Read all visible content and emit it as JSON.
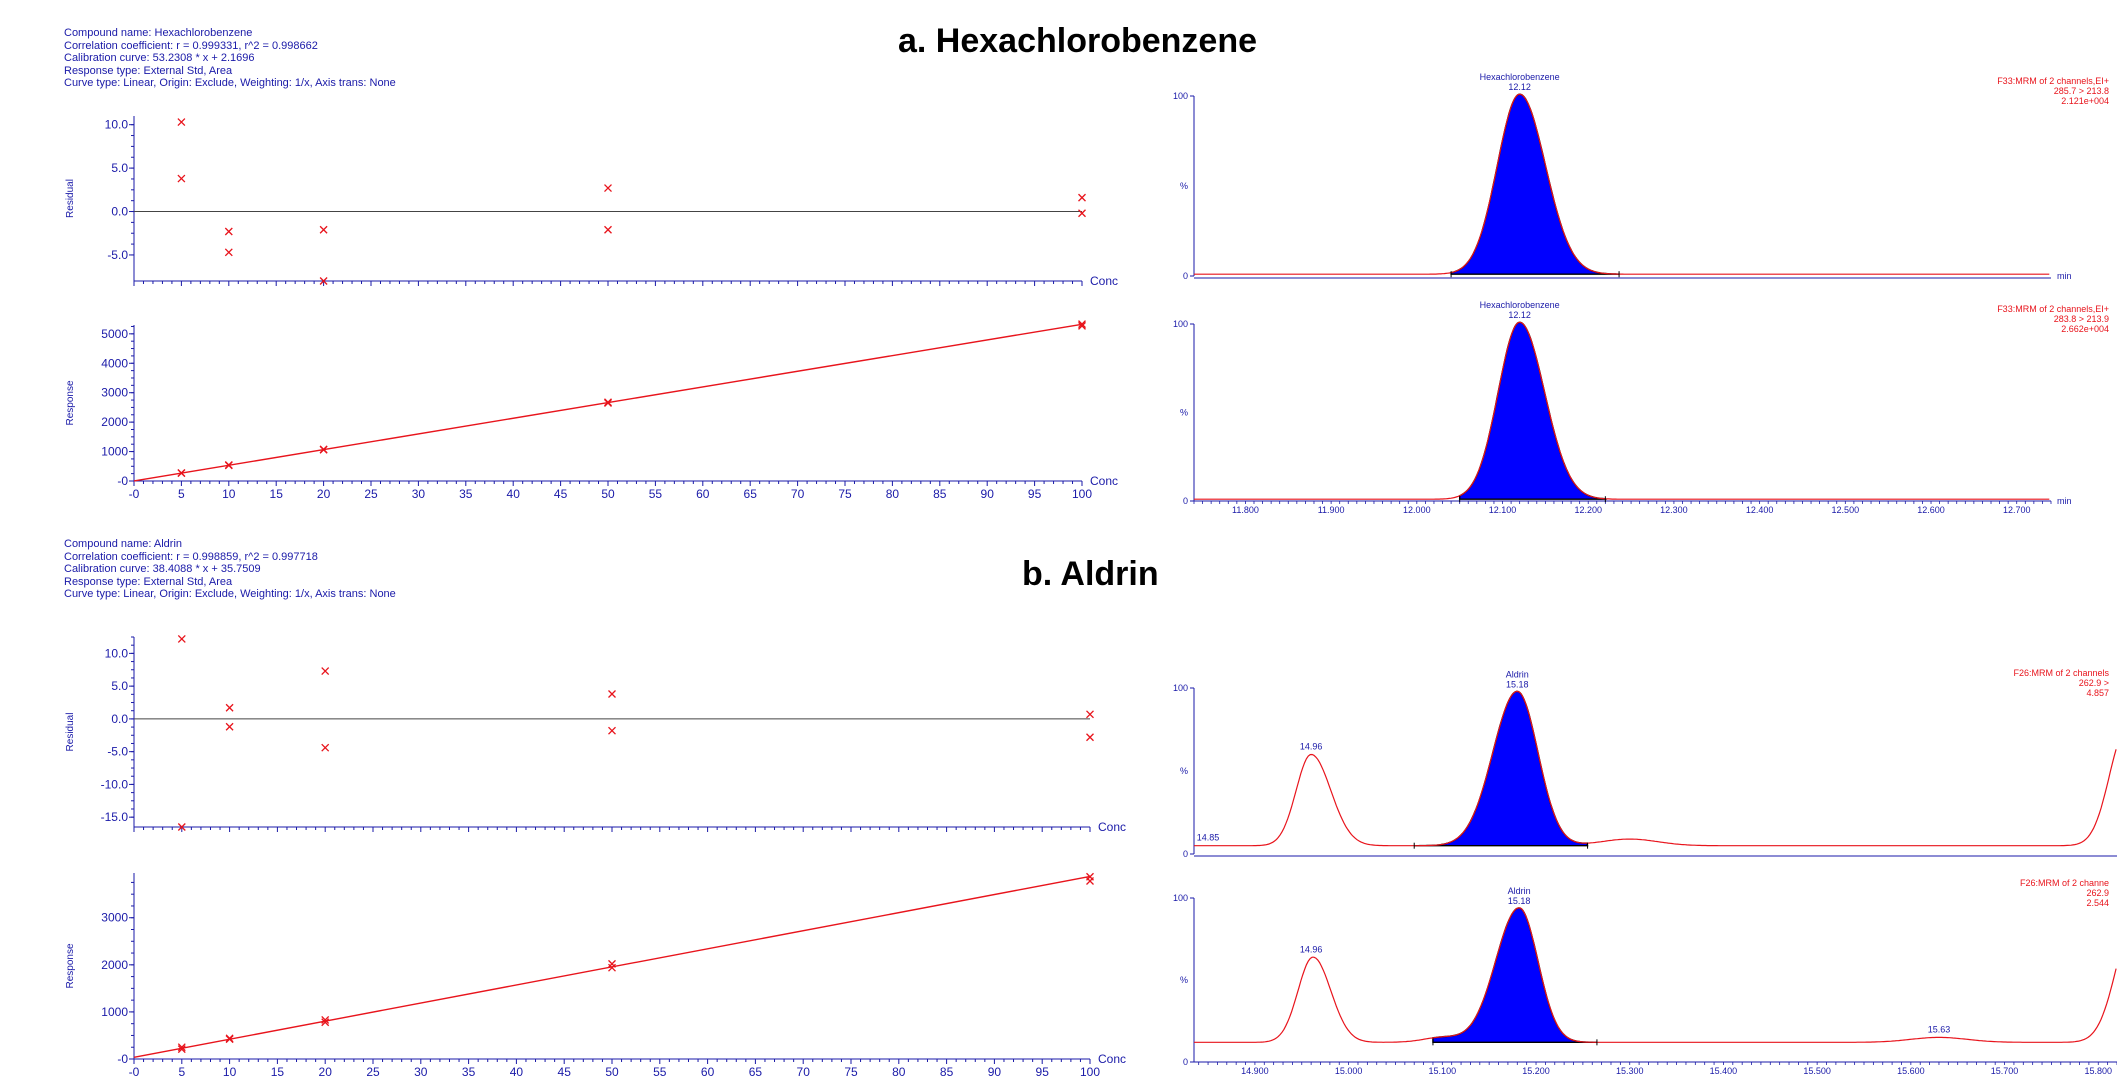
{
  "panels": [
    {
      "title": "a. Hexachlorobenzene",
      "info": [
        "Compound name: Hexachlorobenzene",
        "Correlation coefficient: r = 0.999331, r^2 = 0.998662",
        "Calibration curve: 53.2308 * x + 2.1696",
        "Response type: External Std, Area",
        "Curve type: Linear, Origin: Exclude, Weighting: 1/x, Axis trans: None"
      ]
    },
    {
      "title": "b. Aldrin",
      "info": [
        "Compound name: Aldrin",
        "Correlation coefficient: r = 0.998859, r^2 = 0.997718",
        "Calibration curve: 38.4088 * x + 35.7509",
        "Response type: External Std, Area",
        "Curve type: Linear, Origin: Exclude, Weighting: 1/x, Axis trans: None"
      ]
    }
  ],
  "colors": {
    "axis": "#1a1aa8",
    "data": "#e8141c",
    "peak_fill": "#0000ff",
    "text": "#1a1aa8"
  },
  "chart_data": [
    {
      "id": "a-residual",
      "type": "scatter",
      "title": "",
      "xlabel": "Conc",
      "ylabel": "Residual",
      "xlim": [
        0,
        100
      ],
      "ylim": [
        -8,
        11
      ],
      "zero_line": true,
      "xticks": [
        0,
        5,
        10,
        15,
        20,
        25,
        30,
        35,
        40,
        45,
        50,
        55,
        60,
        65,
        70,
        75,
        80,
        85,
        90,
        95,
        100
      ],
      "xtick_labels_shown": false,
      "yticks": [
        -5,
        0,
        5,
        10
      ],
      "ytick_labels": [
        "-5.0",
        "0.0",
        "5.0",
        "10.0"
      ],
      "points": [
        [
          5,
          10.3
        ],
        [
          5,
          3.8
        ],
        [
          10,
          -2.3
        ],
        [
          10,
          -4.7
        ],
        [
          20,
          -2.1
        ],
        [
          20,
          -8
        ],
        [
          50,
          2.7
        ],
        [
          50,
          -2.1
        ],
        [
          100,
          1.6
        ],
        [
          100,
          -0.2
        ]
      ]
    },
    {
      "id": "a-response",
      "type": "scatter",
      "title": "",
      "xlabel": "Conc",
      "ylabel": "Response",
      "xlim": [
        0,
        100
      ],
      "ylim": [
        0,
        5300
      ],
      "fit": {
        "slope": 53.2308,
        "intercept": 2.1696
      },
      "xticks": [
        0,
        5,
        10,
        15,
        20,
        25,
        30,
        35,
        40,
        45,
        50,
        55,
        60,
        65,
        70,
        75,
        80,
        85,
        90,
        95,
        100
      ],
      "xtick_labels": [
        "-0",
        "5",
        "10",
        "15",
        "20",
        "25",
        "30",
        "35",
        "40",
        "45",
        "50",
        "55",
        "60",
        "65",
        "70",
        "75",
        "80",
        "85",
        "90",
        "95",
        "100"
      ],
      "yticks": [
        0,
        1000,
        2000,
        3000,
        4000,
        5000
      ],
      "ytick_labels": [
        "-0",
        "1000",
        "2000",
        "3000",
        "4000",
        "5000"
      ],
      "points": [
        [
          5,
          268
        ],
        [
          5,
          274
        ],
        [
          10,
          530
        ],
        [
          10,
          545
        ],
        [
          20,
          1060
        ],
        [
          20,
          1075
        ],
        [
          50,
          2650
        ],
        [
          50,
          2675
        ],
        [
          100,
          5270
        ],
        [
          100,
          5330
        ]
      ]
    },
    {
      "id": "a-chrom-1",
      "type": "line",
      "title": "",
      "peak_label": "Hexachlorobenzene",
      "peak_rt": "12.12",
      "channel_info": [
        "F33:MRM of 2 channels,EI+",
        "285.7 > 213.8",
        "2.121e+004"
      ],
      "xlim": [
        11.74,
        12.74
      ],
      "ylim": [
        0,
        100
      ],
      "yticks": [
        0,
        100
      ],
      "ytick_labels": [
        "0",
        "100"
      ],
      "ymid_label": "%",
      "x_unit": "min",
      "xtick_labels_shown": false,
      "peaks": [
        {
          "rt": 12.12,
          "height": 100,
          "sigma_left": 0.026,
          "sigma_right": 0.03,
          "filled": true
        }
      ],
      "integration": [
        12.04,
        12.236
      ],
      "baseline": 1
    },
    {
      "id": "a-chrom-2",
      "type": "line",
      "title": "",
      "peak_label": "Hexachlorobenzene",
      "peak_rt": "12.12",
      "channel_info": [
        "F33:MRM of 2 channels,EI+",
        "283.8 > 213.9",
        "2.662e+004"
      ],
      "xlim": [
        11.74,
        12.74
      ],
      "ylim": [
        0,
        100
      ],
      "yticks": [
        0,
        100
      ],
      "ytick_labels": [
        "0",
        "100"
      ],
      "ymid_label": "%",
      "x_unit": "min",
      "xticks": [
        11.8,
        11.9,
        12.0,
        12.1,
        12.2,
        12.3,
        12.4,
        12.5,
        12.6,
        12.7
      ],
      "xtick_labels": [
        "11.800",
        "11.900",
        "12.000",
        "12.100",
        "12.200",
        "12.300",
        "12.400",
        "12.500",
        "12.600",
        "12.700"
      ],
      "peaks": [
        {
          "rt": 12.12,
          "height": 100,
          "sigma_left": 0.025,
          "sigma_right": 0.029,
          "filled": true
        }
      ],
      "integration": [
        12.05,
        12.22
      ],
      "baseline": 1
    },
    {
      "id": "b-residual",
      "type": "scatter",
      "title": "",
      "xlabel": "Conc",
      "ylabel": "Residual",
      "xlim": [
        0,
        100
      ],
      "ylim": [
        -16.5,
        12.5
      ],
      "zero_line": true,
      "xticks": [
        0,
        5,
        10,
        15,
        20,
        25,
        30,
        35,
        40,
        45,
        50,
        55,
        60,
        65,
        70,
        75,
        80,
        85,
        90,
        95,
        100
      ],
      "xtick_labels_shown": false,
      "yticks": [
        -15,
        -10,
        -5,
        0,
        5,
        10
      ],
      "ytick_labels": [
        "-15.0",
        "-10.0",
        "-5.0",
        "0.0",
        "5.0",
        "10.0"
      ],
      "points": [
        [
          5,
          12.2
        ],
        [
          5,
          -16.5
        ],
        [
          10,
          1.7
        ],
        [
          10,
          -1.2
        ],
        [
          20,
          7.3
        ],
        [
          20,
          -4.4
        ],
        [
          50,
          3.8
        ],
        [
          50,
          -1.8
        ],
        [
          100,
          0.7
        ],
        [
          100,
          -2.8
        ]
      ]
    },
    {
      "id": "b-response",
      "type": "scatter",
      "title": "",
      "xlabel": "Conc",
      "ylabel": "Response",
      "xlim": [
        0,
        100
      ],
      "ylim": [
        0,
        3950
      ],
      "fit": {
        "slope": 38.4088,
        "intercept": 35.7509
      },
      "xticks": [
        0,
        5,
        10,
        15,
        20,
        25,
        30,
        35,
        40,
        45,
        50,
        55,
        60,
        65,
        70,
        75,
        80,
        85,
        90,
        95,
        100
      ],
      "xtick_labels": [
        "-0",
        "5",
        "10",
        "15",
        "20",
        "25",
        "30",
        "35",
        "40",
        "45",
        "50",
        "55",
        "60",
        "65",
        "70",
        "75",
        "80",
        "85",
        "90",
        "95",
        "100"
      ],
      "yticks": [
        0,
        1000,
        2000,
        3000
      ],
      "ytick_labels": [
        "-0",
        "1000",
        "2000",
        "3000"
      ],
      "points": [
        [
          5,
          210
        ],
        [
          5,
          250
        ],
        [
          10,
          420
        ],
        [
          10,
          440
        ],
        [
          20,
          780
        ],
        [
          20,
          830
        ],
        [
          50,
          1940
        ],
        [
          50,
          2020
        ],
        [
          100,
          3780
        ],
        [
          100,
          3870
        ]
      ]
    },
    {
      "id": "b-chrom-1",
      "type": "line",
      "title": "",
      "peak_label": "Aldrin",
      "peak_rt": "15.18",
      "channel_info": [
        "F26:MRM of 2 channels",
        "262.9 >",
        "4.857"
      ],
      "minor_labels": [
        {
          "rt": 14.85,
          "label": "14.85"
        },
        {
          "rt": 14.96,
          "label": "14.96"
        }
      ],
      "xlim": [
        14.835,
        15.82
      ],
      "ylim": [
        0,
        100
      ],
      "yticks": [
        0,
        100
      ],
      "ytick_labels": [
        "0",
        "100"
      ],
      "ymid_label": "%",
      "xtick_labels_shown": false,
      "peaks": [
        {
          "rt": 14.96,
          "height": 55,
          "sigma_left": 0.016,
          "sigma_right": 0.021,
          "filled": false
        },
        {
          "rt": 15.18,
          "height": 93,
          "sigma_left": 0.026,
          "sigma_right": 0.022,
          "filled": true
        },
        {
          "rt": 15.3,
          "height": 4,
          "sigma_left": 0.03,
          "sigma_right": 0.03,
          "filled": false
        },
        {
          "rt": 15.83,
          "height": 70,
          "sigma_left": 0.018,
          "sigma_right": 0.05,
          "filled": false
        }
      ],
      "integration": [
        15.07,
        15.255
      ],
      "baseline": 5
    },
    {
      "id": "b-chrom-2",
      "type": "line",
      "title": "",
      "peak_label": "Aldrin",
      "peak_rt": "15.18",
      "channel_info": [
        "F26:MRM of 2 channe",
        "262.9",
        "2.544"
      ],
      "minor_labels": [
        {
          "rt": 14.96,
          "label": "14.96"
        },
        {
          "rt": 15.63,
          "label": "15.63"
        }
      ],
      "xlim": [
        14.835,
        15.82
      ],
      "ylim": [
        0,
        100
      ],
      "yticks": [
        0,
        100
      ],
      "ytick_labels": [
        "0",
        "100"
      ],
      "ymid_label": "%",
      "xticks": [
        14.9,
        15.0,
        15.1,
        15.2,
        15.3,
        15.4,
        15.5,
        15.6,
        15.7,
        15.8
      ],
      "xtick_labels": [
        "14.900",
        "15.000",
        "15.100",
        "15.200",
        "15.300",
        "15.400",
        "15.500",
        "15.600",
        "15.700",
        "15.800"
      ],
      "peaks": [
        {
          "rt": 14.962,
          "height": 52,
          "sigma_left": 0.016,
          "sigma_right": 0.019,
          "filled": false
        },
        {
          "rt": 15.1,
          "height": 3,
          "sigma_left": 0.02,
          "sigma_right": 0.02,
          "filled": false
        },
        {
          "rt": 15.182,
          "height": 82,
          "sigma_left": 0.025,
          "sigma_right": 0.02,
          "filled": true
        },
        {
          "rt": 15.63,
          "height": 3,
          "sigma_left": 0.03,
          "sigma_right": 0.03,
          "filled": false
        },
        {
          "rt": 15.84,
          "height": 78,
          "sigma_left": 0.02,
          "sigma_right": 0.05,
          "filled": false
        }
      ],
      "integration": [
        15.09,
        15.265
      ],
      "baseline": 12
    }
  ]
}
